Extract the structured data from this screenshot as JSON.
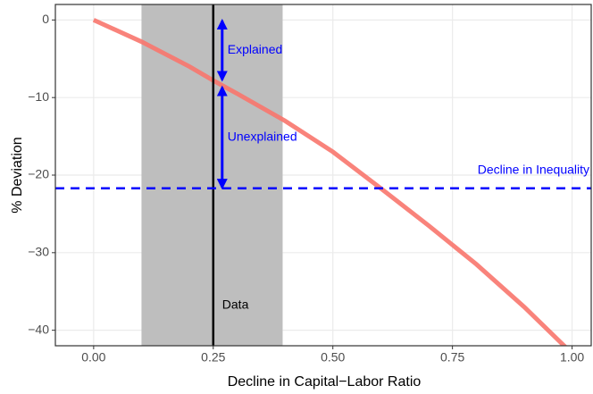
{
  "chart_data": {
    "type": "line",
    "xlabel": "Decline in Capital−Labor Ratio",
    "ylabel": "% Deviation",
    "x": [
      0,
      0.1,
      0.2,
      0.25,
      0.3,
      0.4,
      0.5,
      0.6,
      0.7,
      0.8,
      0.9,
      1.0
    ],
    "values": [
      0,
      -2.8,
      -6,
      -7.8,
      -9.5,
      -13,
      -17,
      -21.7,
      -26.5,
      -31.5,
      -37,
      -43
    ],
    "color": "#f8766d",
    "xlim": [
      -0.08,
      1.04
    ],
    "ylim": [
      -42,
      2
    ],
    "xticks": [
      {
        "value": 0,
        "label": "0.00"
      },
      {
        "value": 0.25,
        "label": "0.25"
      },
      {
        "value": 0.5,
        "label": "0.50"
      },
      {
        "value": 0.75,
        "label": "0.75"
      },
      {
        "value": 1,
        "label": "1.00"
      }
    ],
    "yticks": [
      0,
      {
        "value": -10,
        "label": "−10"
      },
      {
        "value": -20,
        "label": "−20"
      },
      {
        "value": -30,
        "label": "−30"
      },
      {
        "value": -40,
        "label": "−40"
      }
    ],
    "grid": true,
    "band": {
      "x": [
        0.1,
        0.395
      ],
      "color": "#bebebe"
    },
    "data_line": {
      "x": 0.25,
      "label": "Data",
      "color": "#000000"
    },
    "inequality": {
      "value": -21.7,
      "label": "Decline in Inequality",
      "color": "#0000ff"
    },
    "arrows": [
      {
        "label": "Explained",
        "from": 0,
        "to": -7.8
      },
      {
        "label": "Unexplained",
        "from": -8.6,
        "to": -21.7
      }
    ]
  }
}
